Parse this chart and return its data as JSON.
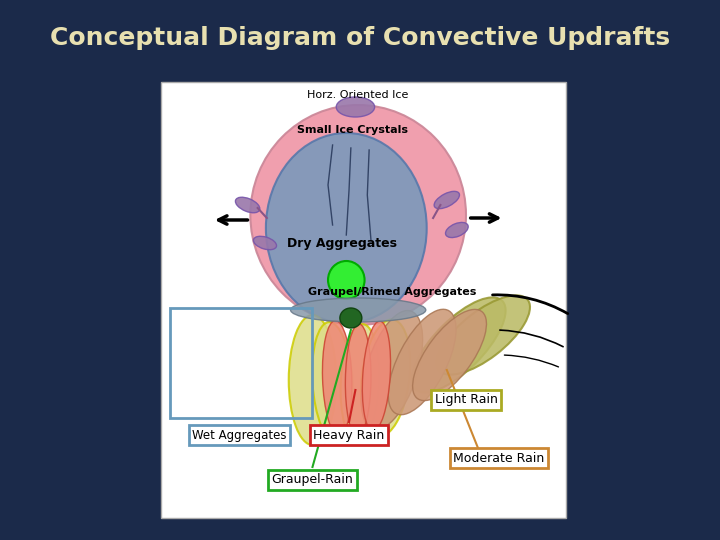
{
  "title": "Conceptual Diagram of Convective Updrafts",
  "title_color": "#E8E0B0",
  "title_fontsize": 18,
  "title_fontweight": "bold",
  "bg_color": "#1B2A4A",
  "colors": {
    "pink_circle": "#F09AAA",
    "blue_ellipse": "#7799BB",
    "green_circle": "#33EE33",
    "dark_green": "#226622",
    "gray_disk": "#9999AA",
    "yellow_outline": "#CCCC00",
    "red_fill": "#DD6655",
    "brown_fill": "#CC9966",
    "olive_fill": "#AAAA55",
    "purple_ice": "#9977AA",
    "wet_agg_box": "#6699BB",
    "heavy_rain_box": "#CC2222",
    "light_rain_box": "#AAAA22",
    "moderate_rain_box": "#CC8833",
    "graupel_rain_box": "#22AA22",
    "dark_blue_lines": "#334455"
  },
  "labels": {
    "horz_ice": "Horz. Oriented Ice",
    "small_ice": "Small Ice Crystals",
    "dry_agg": "Dry Aggregates",
    "graupel_rimed": "Graupel/Rimed Aggregates",
    "wet_agg": "Wet Aggregates",
    "heavy_rain": "Heavy Rain",
    "light_rain": "Light Rain",
    "moderate_rain": "Moderate Rain",
    "graupel_rain": "Graupel-Rain"
  }
}
